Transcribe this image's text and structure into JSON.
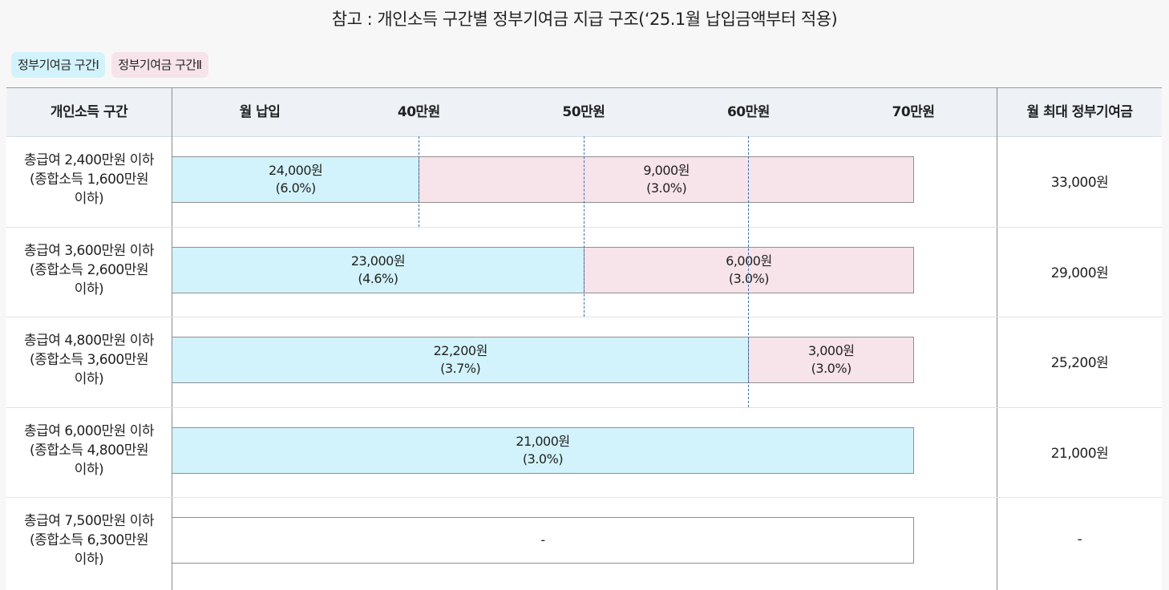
{
  "title": "참고 : 개인소득 구간별 정부기여금 지급 구조(‘25.1월 납입금액부터 적용)",
  "legend": {
    "zone1_label": "정부기여금 구간Ⅰ",
    "zone2_label": "정부기여금 구간Ⅱ",
    "zone1_color": "#d2f3fb",
    "zone2_color": "#f7e3ea"
  },
  "header": {
    "income_col": "개인소득 구간",
    "payment_col": "월 납입",
    "max_col": "월 최대 정부기여금"
  },
  "chart_data": {
    "type": "bar",
    "orientation": "horizontal-stacked",
    "x_axis_label": "월 납입",
    "x_ticks": [
      "40만원",
      "50만원",
      "60만원",
      "70만원"
    ],
    "x_tick_values": [
      40,
      50,
      60,
      70
    ],
    "x_unit": "만원",
    "xlim": [
      25,
      70
    ],
    "series": [
      {
        "name": "정부기여금 구간Ⅰ",
        "color": "#d2f3fb"
      },
      {
        "name": "정부기여금 구간Ⅱ",
        "color": "#f7e3ea"
      }
    ],
    "rows": [
      {
        "income": "총급여 2,400만원 이하",
        "income_sub": "(종합소득 1,600만원",
        "income_sub2": "이하)",
        "zone1_upper": 40,
        "zone1_amount": "24,000원",
        "zone1_rate": "(6.0%)",
        "zone2_amount": "9,000원",
        "zone2_rate": "(3.0%)",
        "max_total": "33,000원"
      },
      {
        "income": "총급여 3,600만원 이하",
        "income_sub": "(종합소득 2,600만원",
        "income_sub2": "이하)",
        "zone1_upper": 50,
        "zone1_amount": "23,000원",
        "zone1_rate": "(4.6%)",
        "zone2_amount": "6,000원",
        "zone2_rate": "(3.0%)",
        "max_total": "29,000원"
      },
      {
        "income": "총급여 4,800만원 이하",
        "income_sub": "(종합소득 3,600만원",
        "income_sub2": "이하)",
        "zone1_upper": 60,
        "zone1_amount": "22,200원",
        "zone1_rate": "(3.7%)",
        "zone2_amount": "3,000원",
        "zone2_rate": "(3.0%)",
        "max_total": "25,200원"
      },
      {
        "income": "총급여 6,000만원 이하",
        "income_sub": "(종합소득 4,800만원",
        "income_sub2": "이하)",
        "zone1_upper": 70,
        "zone1_amount": "21,000원",
        "zone1_rate": "(3.0%)",
        "zone2_amount": "",
        "zone2_rate": "",
        "max_total": "21,000원"
      },
      {
        "income": "총급여 7,500만원 이하",
        "income_sub": "(종합소득 6,300만원",
        "income_sub2": "이하)",
        "zone1_upper": null,
        "zone1_amount": "-",
        "zone1_rate": "",
        "zone2_amount": "",
        "zone2_rate": "",
        "max_total": "-"
      }
    ]
  }
}
